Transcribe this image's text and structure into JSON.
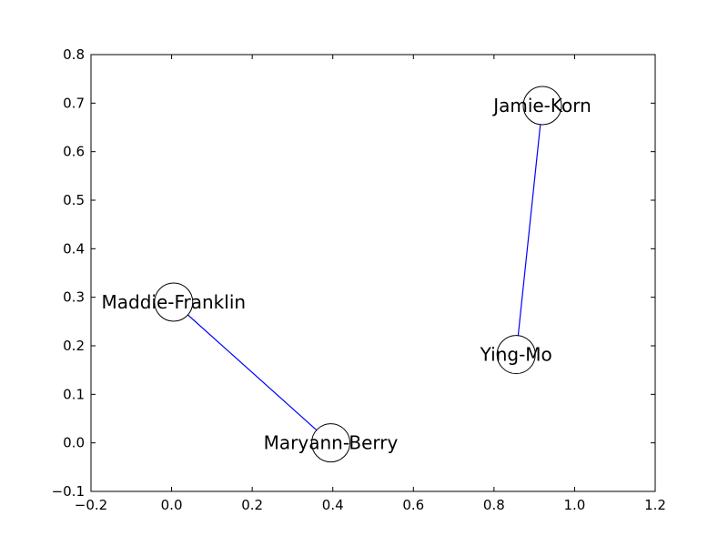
{
  "chart_data": {
    "type": "scatter",
    "title": "",
    "xlabel": "",
    "ylabel": "",
    "xlim": [
      -0.2,
      1.2
    ],
    "ylim": [
      -0.1,
      0.8
    ],
    "grid": false,
    "x_ticks": [
      -0.2,
      0.0,
      0.2,
      0.4,
      0.6,
      0.8,
      1.0,
      1.2
    ],
    "x_tick_labels": [
      "−0.2",
      "0.0",
      "0.2",
      "0.4",
      "0.6",
      "0.8",
      "1.0",
      "1.2"
    ],
    "y_ticks": [
      -0.1,
      0.0,
      0.1,
      0.2,
      0.3,
      0.4,
      0.5,
      0.6,
      0.7,
      0.8
    ],
    "y_tick_labels": [
      "−0.1",
      "0.0",
      "0.1",
      "0.2",
      "0.3",
      "0.4",
      "0.5",
      "0.6",
      "0.7",
      "0.8"
    ],
    "nodes": [
      {
        "id": "maddie-franklin",
        "label": "Maddie-Franklin",
        "x": 0.005,
        "y": 0.29
      },
      {
        "id": "maryann-berry",
        "label": "Maryann-Berry",
        "x": 0.395,
        "y": 0.0
      },
      {
        "id": "jamie-korn",
        "label": "Jamie-Korn",
        "x": 0.92,
        "y": 0.695
      },
      {
        "id": "ying-mo",
        "label": "Ying-Mo",
        "x": 0.855,
        "y": 0.182
      }
    ],
    "edges": [
      {
        "source": "maddie-franklin",
        "target": "maryann-berry"
      },
      {
        "source": "jamie-korn",
        "target": "ying-mo"
      }
    ],
    "colors": {
      "edge": "#0000ff",
      "node_fill": "#ffffff",
      "node_stroke": "#000000",
      "axes": "#000000"
    }
  }
}
